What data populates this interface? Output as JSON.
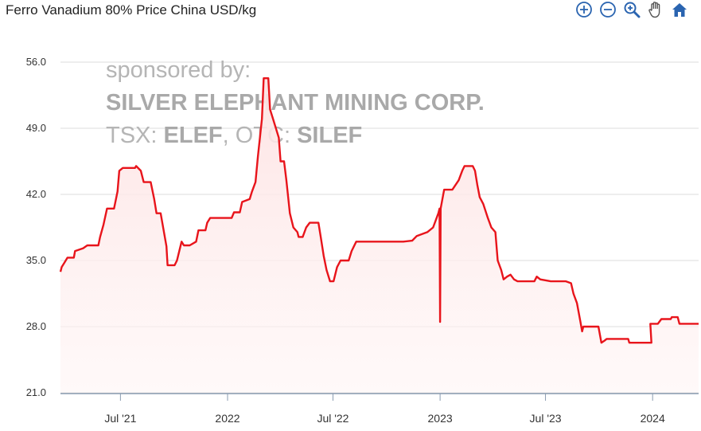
{
  "header": {
    "title": "Ferro Vanadium 80% Price China USD/kg"
  },
  "toolbar": {
    "buttons": [
      {
        "name": "zoom-in-icon",
        "icon": "circle-plus"
      },
      {
        "name": "zoom-out-icon",
        "icon": "circle-minus"
      },
      {
        "name": "magnifier-zoom-icon",
        "icon": "magnifier-plus"
      },
      {
        "name": "pan-hand-icon",
        "icon": "hand"
      },
      {
        "name": "home-reset-icon",
        "icon": "house"
      }
    ],
    "color": "#2a64b0"
  },
  "watermark": {
    "line1": "sponsored by:",
    "line2": "SILVER ELEPHANT MINING CORP.",
    "line3_prefix": "TSX: ",
    "line3_bold1": "ELEF",
    "line3_mid": ", OTC: ",
    "line3_bold2": "SILEF"
  },
  "chart_data": {
    "type": "area",
    "title": "Ferro Vanadium 80% Price China USD/kg",
    "xlabel": "",
    "ylabel": "",
    "ylim": [
      21,
      56
    ],
    "y_ticks": [
      "21.0",
      "28.0",
      "35.0",
      "42.0",
      "49.0",
      "56.0"
    ],
    "x_ticks": [
      {
        "date": "2021-07-01",
        "label": "Jul '21"
      },
      {
        "date": "2022-01-01",
        "label": "2022"
      },
      {
        "date": "2022-07-01",
        "label": "Jul '22"
      },
      {
        "date": "2023-01-01",
        "label": "2023"
      },
      {
        "date": "2023-07-01",
        "label": "Jul '23"
      },
      {
        "date": "2024-01-01",
        "label": "2024"
      }
    ],
    "xlim": [
      "2021-03-20",
      "2024-03-20"
    ],
    "grid": true,
    "line_color": "#e8141b",
    "fill_color": "#fdeaea",
    "series": [
      {
        "points": [
          [
            "2021-03-20",
            33.8
          ],
          [
            "2021-03-22",
            34.3
          ],
          [
            "2021-03-26",
            34.7
          ],
          [
            "2021-04-01",
            35.3
          ],
          [
            "2021-04-12",
            35.3
          ],
          [
            "2021-04-14",
            36.0
          ],
          [
            "2021-04-28",
            36.3
          ],
          [
            "2021-05-05",
            36.6
          ],
          [
            "2021-05-24",
            36.6
          ],
          [
            "2021-05-27",
            37.5
          ],
          [
            "2021-06-02",
            38.8
          ],
          [
            "2021-06-08",
            40.5
          ],
          [
            "2021-06-20",
            40.5
          ],
          [
            "2021-06-26",
            42.3
          ],
          [
            "2021-06-29",
            44.5
          ],
          [
            "2021-07-05",
            44.8
          ],
          [
            "2021-07-26",
            44.8
          ],
          [
            "2021-07-28",
            45.0
          ],
          [
            "2021-08-05",
            44.5
          ],
          [
            "2021-08-10",
            43.3
          ],
          [
            "2021-08-22",
            43.3
          ],
          [
            "2021-08-28",
            41.5
          ],
          [
            "2021-09-01",
            40.0
          ],
          [
            "2021-09-08",
            40.0
          ],
          [
            "2021-09-18",
            36.5
          ],
          [
            "2021-09-20",
            34.5
          ],
          [
            "2021-10-02",
            34.5
          ],
          [
            "2021-10-06",
            35.0
          ],
          [
            "2021-10-14",
            37.0
          ],
          [
            "2021-10-18",
            36.6
          ],
          [
            "2021-10-28",
            36.6
          ],
          [
            "2021-11-08",
            37.0
          ],
          [
            "2021-11-12",
            38.2
          ],
          [
            "2021-11-24",
            38.2
          ],
          [
            "2021-11-27",
            39.0
          ],
          [
            "2021-12-02",
            39.5
          ],
          [
            "2021-12-28",
            39.5
          ],
          [
            "2022-01-01",
            39.5
          ],
          [
            "2022-01-08",
            39.5
          ],
          [
            "2022-01-12",
            40.1
          ],
          [
            "2022-01-22",
            40.1
          ],
          [
            "2022-01-26",
            41.2
          ],
          [
            "2022-02-08",
            41.5
          ],
          [
            "2022-02-12",
            42.3
          ],
          [
            "2022-02-18",
            43.3
          ],
          [
            "2022-02-22",
            46.0
          ],
          [
            "2022-03-01",
            50.0
          ],
          [
            "2022-03-04",
            54.3
          ],
          [
            "2022-03-12",
            54.3
          ],
          [
            "2022-03-15",
            51.0
          ],
          [
            "2022-03-20",
            50.0
          ],
          [
            "2022-03-30",
            48.0
          ],
          [
            "2022-04-02",
            45.5
          ],
          [
            "2022-04-08",
            45.5
          ],
          [
            "2022-04-12",
            43.5
          ],
          [
            "2022-04-18",
            40.0
          ],
          [
            "2022-04-24",
            38.5
          ],
          [
            "2022-05-01",
            38.0
          ],
          [
            "2022-05-03",
            37.5
          ],
          [
            "2022-05-10",
            37.5
          ],
          [
            "2022-05-16",
            38.5
          ],
          [
            "2022-05-22",
            39.0
          ],
          [
            "2022-06-06",
            39.0
          ],
          [
            "2022-06-10",
            37.5
          ],
          [
            "2022-06-15",
            35.5
          ],
          [
            "2022-06-20",
            34.0
          ],
          [
            "2022-06-26",
            32.8
          ],
          [
            "2022-07-02",
            32.8
          ],
          [
            "2022-07-08",
            34.3
          ],
          [
            "2022-07-14",
            35.0
          ],
          [
            "2022-07-28",
            35.0
          ],
          [
            "2022-08-02",
            36.0
          ],
          [
            "2022-08-06",
            36.5
          ],
          [
            "2022-08-10",
            37.0
          ],
          [
            "2022-09-12",
            37.0
          ],
          [
            "2022-10-01",
            37.0
          ],
          [
            "2022-10-30",
            37.0
          ],
          [
            "2022-11-14",
            37.1
          ],
          [
            "2022-11-22",
            37.6
          ],
          [
            "2022-12-10",
            38.0
          ],
          [
            "2022-12-20",
            38.5
          ],
          [
            "2022-12-29",
            40.0
          ],
          [
            "2022-12-31",
            40.5
          ],
          [
            "2023-01-01",
            28.5
          ],
          [
            "2023-01-02",
            40.5
          ],
          [
            "2023-01-05",
            41.5
          ],
          [
            "2023-01-08",
            42.5
          ],
          [
            "2023-01-22",
            42.5
          ],
          [
            "2023-02-02",
            43.5
          ],
          [
            "2023-02-08",
            44.5
          ],
          [
            "2023-02-12",
            45.0
          ],
          [
            "2023-02-26",
            45.0
          ],
          [
            "2023-03-02",
            44.5
          ],
          [
            "2023-03-06",
            43.0
          ],
          [
            "2023-03-10",
            41.7
          ],
          [
            "2023-03-16",
            41.0
          ],
          [
            "2023-03-24",
            39.5
          ],
          [
            "2023-03-30",
            38.5
          ],
          [
            "2023-04-06",
            38.0
          ],
          [
            "2023-04-10",
            35.0
          ],
          [
            "2023-04-16",
            34.0
          ],
          [
            "2023-04-20",
            33.0
          ],
          [
            "2023-04-26",
            33.3
          ],
          [
            "2023-05-02",
            33.5
          ],
          [
            "2023-05-08",
            33.0
          ],
          [
            "2023-05-14",
            32.8
          ],
          [
            "2023-05-20",
            32.8
          ],
          [
            "2023-06-12",
            32.8
          ],
          [
            "2023-06-16",
            33.3
          ],
          [
            "2023-06-22",
            33.0
          ],
          [
            "2023-07-10",
            32.8
          ],
          [
            "2023-07-18",
            32.8
          ],
          [
            "2023-08-05",
            32.8
          ],
          [
            "2023-08-14",
            32.6
          ],
          [
            "2023-08-18",
            31.5
          ],
          [
            "2023-08-24",
            30.5
          ],
          [
            "2023-08-30",
            28.5
          ],
          [
            "2023-09-02",
            27.5
          ],
          [
            "2023-09-04",
            28.0
          ],
          [
            "2023-09-30",
            28.0
          ],
          [
            "2023-10-05",
            26.3
          ],
          [
            "2023-10-10",
            26.5
          ],
          [
            "2023-10-14",
            26.7
          ],
          [
            "2023-11-20",
            26.7
          ],
          [
            "2023-11-22",
            26.3
          ],
          [
            "2023-12-12",
            26.3
          ],
          [
            "2023-12-30",
            26.3
          ],
          [
            "2023-12-28",
            28.3
          ],
          [
            "2024-01-10",
            28.3
          ],
          [
            "2024-01-16",
            28.8
          ],
          [
            "2024-02-01",
            28.8
          ],
          [
            "2024-02-03",
            29.0
          ],
          [
            "2024-02-13",
            29.0
          ],
          [
            "2024-02-16",
            28.3
          ],
          [
            "2024-03-20",
            28.3
          ]
        ]
      }
    ]
  }
}
